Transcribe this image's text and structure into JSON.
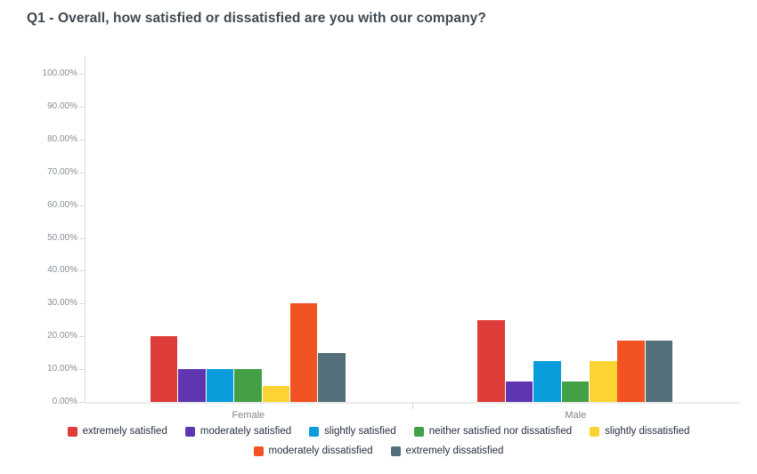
{
  "chart_data": {
    "type": "bar",
    "title": "Q1 - Overall, how satisfied or dissatisfied are you with our company?",
    "categories": [
      "Female",
      "Male"
    ],
    "series": [
      {
        "name": "extremely satisfied",
        "color": "#DE3C38",
        "values": [
          20,
          25
        ]
      },
      {
        "name": "moderately satisfied",
        "color": "#5F35B1",
        "values": [
          10,
          6.25
        ]
      },
      {
        "name": "slightly satisfied",
        "color": "#0A9DDB",
        "values": [
          10,
          12.5
        ]
      },
      {
        "name": "neither satisfied nor dissatisfied",
        "color": "#43A047",
        "values": [
          10,
          6.25
        ]
      },
      {
        "name": "slightly dissatisfied",
        "color": "#FBD433",
        "values": [
          5,
          12.5
        ]
      },
      {
        "name": "moderately dissatisfied",
        "color": "#F25322",
        "values": [
          30,
          18.75
        ]
      },
      {
        "name": "extremely dissatisfied",
        "color": "#546E7A",
        "values": [
          15,
          18.75
        ]
      }
    ],
    "y_axis": {
      "min": 0,
      "max": 100,
      "step": 10,
      "unit": "%",
      "ticks": [
        "0.00%",
        "10.00%",
        "20.00%",
        "30.00%",
        "40.00%",
        "50.00%",
        "60.00%",
        "70.00%",
        "80.00%",
        "90.00%",
        "100.00%"
      ]
    },
    "x_axis": {
      "labels": [
        "Female",
        "Male"
      ]
    },
    "grid": false,
    "legend_position": "bottom",
    "legend_rows": [
      [
        "extremely satisfied",
        "moderately satisfied",
        "slightly satisfied",
        "neither satisfied nor dissatisfied",
        "slightly dissatisfied"
      ],
      [
        "moderately dissatisfied",
        "extremely dissatisfied"
      ]
    ]
  },
  "style": {
    "background": "#FFFFFF",
    "title_color": "#3E4750",
    "axis_text_color": "#858D94",
    "category_text_color": "#7E868D",
    "legend_text_color": "#252E3F",
    "axis_line_color": "#D8DCDE",
    "baseline_color": "#ECECEC"
  }
}
